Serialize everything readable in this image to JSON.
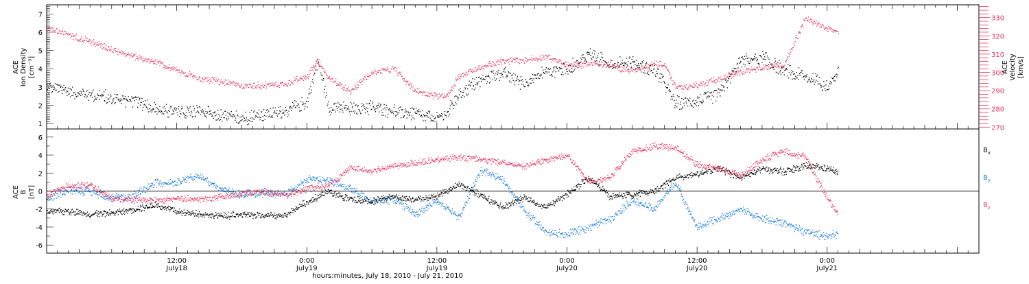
{
  "colors": {
    "black": "#000000",
    "pink": "#e8365f",
    "blue": "#1f7fdb",
    "gray": "#7a7a7a"
  },
  "xaxis": {
    "title": "hours:minutes, July 18, 2010 - July 21, 2010",
    "ticks": [
      {
        "t": 12,
        "time": "12:00",
        "date": "July18"
      },
      {
        "t": 24,
        "time": "0:00",
        "date": "July19"
      },
      {
        "t": 36,
        "time": "12:00",
        "date": "July19"
      },
      {
        "t": 48,
        "time": "0:00",
        "date": "July20"
      },
      {
        "t": 60,
        "time": "12:00",
        "date": "July20"
      },
      {
        "t": 72,
        "time": "0:00",
        "date": "July21"
      }
    ]
  },
  "panel1": {
    "ylabel_lines": [
      "ACE",
      "Ion Density"
    ],
    "yunit": "[cm⁻³]",
    "yticks": [
      "1",
      "2",
      "3",
      "4",
      "5",
      "6",
      "7"
    ],
    "y2label_lines": [
      "ACE",
      "Velocity"
    ],
    "y2unit": "[km/s]",
    "y2ticks": [
      "270",
      "280",
      "290",
      "300",
      "310",
      "320",
      "330"
    ]
  },
  "panel2": {
    "ylabel_lines": [
      "ACE",
      "B"
    ],
    "yunit": "[nT]",
    "yticks": [
      "-6",
      "-4",
      "-2",
      "0",
      "2",
      "4",
      "6"
    ],
    "legend": [
      "B",
      "B",
      "B"
    ],
    "legend_subscripts": [
      "x",
      "y",
      "z"
    ]
  },
  "chart_data": [
    {
      "type": "scatter",
      "xlabel": "hours:minutes, July 18, 2010 - July 21, 2010",
      "xlim": [
        0,
        86
      ],
      "x_unit": "hours since July 18, 2010 0:00",
      "ylim": [
        0.7,
        7.5
      ],
      "y2lim": [
        269,
        337
      ],
      "series": [
        {
          "name": "ACE Ion Density",
          "axis": "left",
          "color": "#000000",
          "t": [
            0,
            2,
            4,
            6,
            8,
            10,
            12,
            14,
            16,
            18,
            20,
            22,
            24,
            25,
            26,
            28,
            30,
            32,
            34,
            36,
            37,
            38,
            40,
            42,
            44,
            46,
            48,
            50,
            52,
            54,
            56,
            57,
            58,
            60,
            62,
            64,
            66,
            68,
            70,
            72,
            73
          ],
          "values": [
            3.0,
            2.8,
            2.6,
            2.4,
            2.3,
            1.8,
            1.6,
            1.7,
            1.4,
            1.3,
            1.5,
            1.7,
            2.2,
            4.5,
            1.9,
            1.8,
            1.9,
            1.7,
            1.5,
            1.3,
            1.6,
            2.6,
            3.4,
            3.8,
            3.2,
            3.9,
            4.0,
            4.8,
            4.3,
            4.4,
            3.9,
            3.2,
            2.1,
            2.3,
            2.6,
            4.5,
            4.6,
            3.9,
            3.6,
            3.0,
            4.0
          ]
        },
        {
          "name": "ACE Velocity",
          "axis": "right",
          "color": "#e8365f",
          "t": [
            0,
            2,
            4,
            6,
            8,
            10,
            12,
            14,
            16,
            18,
            20,
            22,
            24,
            25,
            26,
            28,
            30,
            32,
            34,
            36,
            37,
            38,
            40,
            42,
            44,
            46,
            48,
            50,
            52,
            54,
            56,
            57,
            58,
            60,
            62,
            64,
            66,
            68,
            70,
            72,
            73
          ],
          "values": [
            324,
            321,
            317,
            313,
            309,
            306,
            301,
            297,
            295,
            293,
            293,
            294,
            298,
            306,
            297,
            290,
            300,
            302,
            290,
            287,
            288,
            298,
            303,
            306,
            307,
            309,
            304,
            305,
            304,
            301,
            305,
            304,
            292,
            293,
            296,
            301,
            303,
            304,
            330,
            324,
            322
          ]
        }
      ]
    },
    {
      "type": "scatter",
      "ylabel": "ACE B [nT]",
      "xlim": [
        0,
        86
      ],
      "ylim": [
        -6.9,
        6.9
      ],
      "series": [
        {
          "name": "Bx",
          "color": "#000000",
          "t": [
            0,
            2,
            4,
            6,
            8,
            10,
            12,
            14,
            16,
            18,
            20,
            22,
            24,
            26,
            28,
            30,
            32,
            34,
            36,
            38,
            40,
            42,
            44,
            46,
            48,
            50,
            52,
            54,
            56,
            58,
            60,
            62,
            64,
            66,
            68,
            70,
            72,
            73
          ],
          "values": [
            -2.3,
            -2.2,
            -2.5,
            -2.4,
            -2.0,
            -1.5,
            -2.3,
            -2.5,
            -2.7,
            -2.6,
            -2.7,
            -2.6,
            -1.2,
            0.0,
            -0.9,
            -1.1,
            -0.6,
            -0.9,
            -0.5,
            0.8,
            -0.4,
            -1.8,
            -0.7,
            -1.8,
            -0.3,
            1.5,
            -0.6,
            -0.3,
            0.0,
            1.5,
            2.0,
            2.5,
            1.5,
            2.5,
            2.2,
            2.8,
            2.6,
            2.0
          ]
        },
        {
          "name": "By",
          "color": "#1f7fdb",
          "t": [
            0,
            2,
            4,
            6,
            8,
            10,
            12,
            14,
            16,
            18,
            20,
            22,
            24,
            26,
            28,
            30,
            32,
            34,
            36,
            38,
            40,
            42,
            44,
            46,
            48,
            50,
            52,
            54,
            56,
            58,
            60,
            62,
            64,
            66,
            68,
            70,
            72,
            73
          ],
          "values": [
            -0.9,
            0.2,
            0.0,
            -0.7,
            -0.5,
            0.9,
            1.0,
            1.8,
            0.2,
            -0.4,
            -0.2,
            -0.4,
            1.3,
            1.2,
            0.3,
            -1.2,
            -0.8,
            -2.5,
            -1.0,
            -3.0,
            2.3,
            1.5,
            -2.0,
            -4.5,
            -4.8,
            -4.0,
            -3.0,
            -1.0,
            -2.0,
            1.0,
            -4.0,
            -3.0,
            -2.0,
            -3.0,
            -3.5,
            -4.5,
            -5.0,
            -4.7
          ]
        },
        {
          "name": "Bz",
          "color": "#e8365f",
          "t": [
            0,
            2,
            4,
            6,
            8,
            10,
            12,
            14,
            16,
            18,
            20,
            22,
            24,
            26,
            28,
            30,
            32,
            34,
            36,
            38,
            40,
            42,
            44,
            46,
            48,
            50,
            52,
            54,
            56,
            58,
            60,
            62,
            64,
            66,
            68,
            70,
            72,
            73
          ],
          "values": [
            -0.5,
            0.6,
            0.7,
            -0.8,
            -0.9,
            -1.0,
            -0.8,
            -0.9,
            -0.6,
            -0.2,
            0.0,
            -0.4,
            0.3,
            0.7,
            2.6,
            2.2,
            2.8,
            3.2,
            3.5,
            3.8,
            3.6,
            3.2,
            2.8,
            3.5,
            4.0,
            1.0,
            1.5,
            4.5,
            5.0,
            4.8,
            3.0,
            2.5,
            1.8,
            3.5,
            4.5,
            3.8,
            -0.8,
            -2.5
          ]
        }
      ]
    }
  ]
}
